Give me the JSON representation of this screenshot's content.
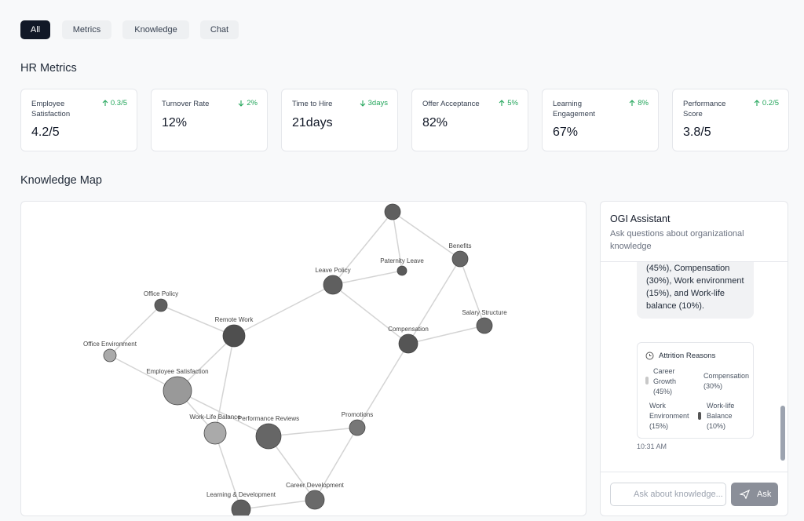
{
  "tabs": [
    "All",
    "Metrics",
    "Knowledge",
    "Chat"
  ],
  "metrics_title": "HR Metrics",
  "metrics": [
    {
      "label": "Employee Satisfaction",
      "change": "0.3/5",
      "trend": "up",
      "value": "4.2/5"
    },
    {
      "label": "Turnover Rate",
      "change": "2%",
      "trend": "down",
      "value": "12%"
    },
    {
      "label": "Time to Hire",
      "change": "3days",
      "trend": "down",
      "value": "21days"
    },
    {
      "label": "Offer Acceptance",
      "change": "5%",
      "trend": "up",
      "value": "82%"
    },
    {
      "label": "Learning Engagement",
      "change": "8%",
      "trend": "up",
      "value": "67%"
    },
    {
      "label": "Performance Score",
      "change": "0.2/5",
      "trend": "up",
      "value": "3.8/5"
    }
  ],
  "map_title": "Knowledge Map",
  "nodes": [
    null,
    "Benefits",
    "Paternity Leave",
    "Leave Policy",
    "Office Policy",
    "Salary Structure",
    "Remote Work",
    "Compensation",
    "Office Environment",
    "Employee Satisfaction",
    "Promotions",
    "Work-Life Balance",
    "Performance Reviews",
    "Career Development",
    "Learning & Development"
  ],
  "assistant": {
    "title": "OGI Assistant",
    "subtitle": "Ask questions about organizational knowledge",
    "message": "(45%), Compensation (30%), Work environment (15%), and Work-life balance (10%).",
    "card_title": "Attrition Reasons",
    "legend": [
      "Career Growth (45%)",
      "Compensation (30%)",
      "Work Environment (15%)",
      "Work-life Balance (10%)"
    ],
    "time": "10:31 AM",
    "placeholder": "Ask about knowledge...",
    "button": "Ask"
  }
}
